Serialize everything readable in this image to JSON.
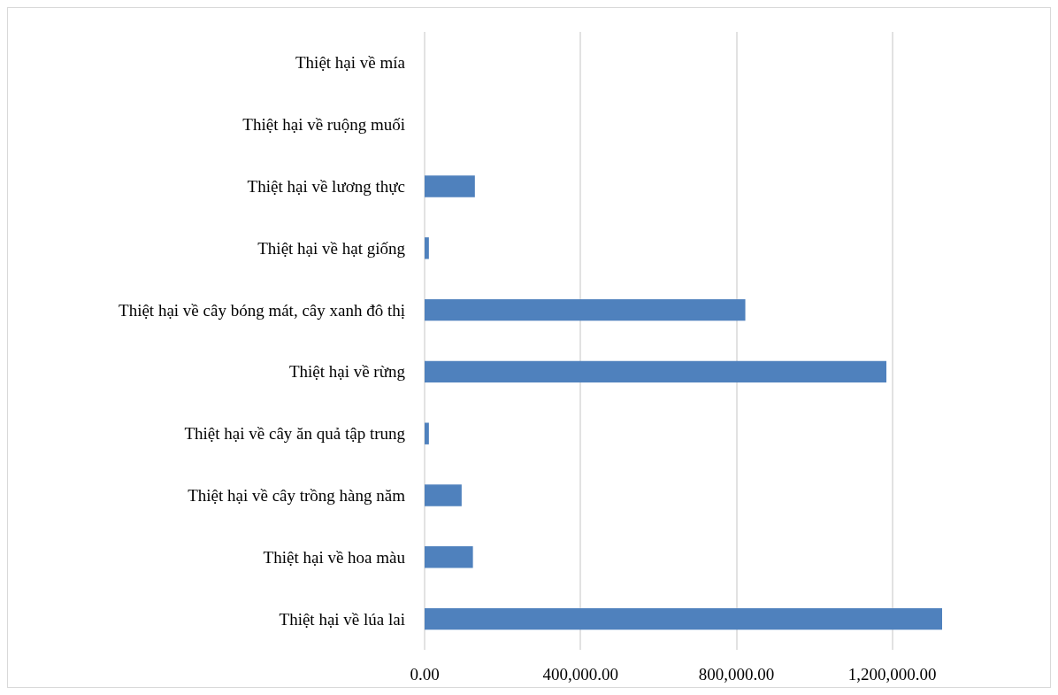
{
  "chart_data": {
    "type": "bar",
    "orientation": "horizontal",
    "categories": [
      "Thiệt hại về mía",
      "Thiệt hại về ruộng muối",
      "Thiệt hại về lương thực",
      "Thiệt hại về hạt giống",
      "Thiệt hại về cây bóng mát, cây xanh đô thị",
      "Thiệt hại về rừng",
      "Thiệt hại về cây ăn quả tập trung",
      "Thiệt hại về cây trồng hàng năm",
      "Thiệt hại về hoa màu",
      "Thiệt hại về lúa lai"
    ],
    "values": [
      0,
      0,
      129000,
      11000,
      823000,
      1185000,
      11000,
      95000,
      124000,
      1328000
    ],
    "color": "#4f81bd",
    "xlim": [
      0,
      1328000
    ],
    "xticks": [
      {
        "value": 0,
        "label": "0.00"
      },
      {
        "value": 400000,
        "label": "400,000.00"
      },
      {
        "value": 800000,
        "label": "800,000.00"
      },
      {
        "value": 1200000,
        "label": "1,200,000.00"
      }
    ],
    "grid": "x"
  }
}
